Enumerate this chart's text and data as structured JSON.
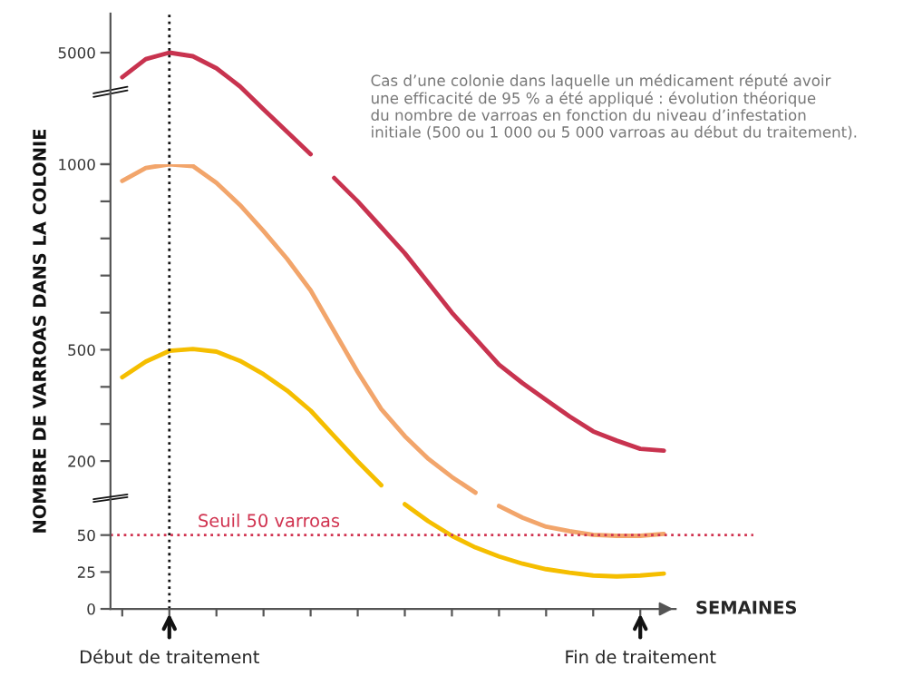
{
  "chart_data": [
    {
      "type": "line",
      "categories": [
        null,
        null,
        null,
        null,
        null,
        null,
        null,
        null,
        null
      ],
      "series": [
        {
          "color": "#c8334f",
          "values": [
            4120,
            4770,
            5000,
            4870,
            4440,
            3790,
            2970,
            2160,
            1360
          ]
        }
      ],
      "ylim": [
        1000,
        6400
      ],
      "yticks": [
        1000,
        5000
      ],
      "tick_labels": "y",
      "line_style": "solid",
      "annotations": [
        "Cas d’une colonie dans laquelle un médicament réputé avoir\nune efficacité de 95 % a été appliqué : évolution théorique\ndu nombre de varroas en fonction du niveau d’infestation\ninitiale (500 ou 1 000 ou 5 000 varroas au début du traitement)."
      ]
    },
    {
      "type": "line",
      "categories": [
        null,
        null,
        null,
        null,
        null,
        null,
        null,
        null,
        null,
        null,
        null,
        null,
        null,
        null,
        null,
        null,
        null,
        null,
        null,
        null,
        null,
        null,
        null,
        null
      ],
      "series": [
        {
          "color": "#c8334f",
          "values": [
            null,
            null,
            null,
            null,
            null,
            null,
            null,
            null,
            null,
            963,
            900,
            830,
            760,
            680,
            600,
            530,
            460,
            410,
            365,
            320,
            280,
            255,
            233,
            228
          ]
        },
        {
          "color": "#f2a56b",
          "values": [
            955,
            990,
            1000,
            995,
            950,
            890,
            820,
            745,
            660,
            550,
            440,
            340,
            267,
            206,
            157,
            115,
            null,
            null,
            null,
            null,
            null,
            null,
            null,
            null
          ]
        },
        {
          "color": "#f5be00",
          "values": [
            426,
            468,
            497,
            502,
            495,
            470,
            434,
            390,
            336,
            267,
            199,
            135,
            null,
            null,
            null,
            null,
            null,
            null,
            null,
            null,
            null,
            null,
            null,
            null
          ]
        }
      ],
      "ylim": [
        100,
        1000
      ],
      "yticks": [
        200,
        {
          "value": 300,
          "label": null
        },
        {
          "value": 400,
          "label": null
        },
        500,
        {
          "value": 600,
          "label": null
        },
        {
          "value": 700,
          "label": null
        },
        {
          "value": 800,
          "label": null
        },
        {
          "value": 900,
          "label": null
        },
        {
          "value": 1000,
          "label": null
        }
      ],
      "tick_labels": "y",
      "ylabel": "NOMBRE DE VARROAS DANS LA COLONIE",
      "line_style": "solid"
    },
    {
      "type": "line",
      "categories": [
        null,
        null,
        null,
        null,
        null,
        null,
        null,
        null,
        null,
        null,
        null,
        null,
        null,
        null,
        null,
        null,
        null,
        null,
        null,
        null,
        null,
        null,
        null,
        null
      ],
      "series": [
        {
          "color": "#f2a56b",
          "values": [
            null,
            null,
            null,
            null,
            null,
            null,
            null,
            null,
            null,
            null,
            null,
            null,
            null,
            null,
            null,
            null,
            69.7,
            61.8,
            55.7,
            52.6,
            50.2,
            49.5,
            49.5,
            50.8
          ]
        },
        {
          "color": "#f5be00",
          "values": [
            null,
            null,
            null,
            null,
            null,
            null,
            null,
            null,
            null,
            null,
            null,
            null,
            70.9,
            59.3,
            49.5,
            41.6,
            35.5,
            30.6,
            26.9,
            24.5,
            22.6,
            22,
            22.6,
            23.9
          ]
        }
      ],
      "ylim": [
        0,
        75
      ],
      "yticks": [
        0,
        25,
        50
      ],
      "xlabel": "SEMAINES",
      "line_style": "solid",
      "ref_lines": [
        {
          "axis": "y",
          "value": 50,
          "label": "Seuil 50 varroas",
          "color": "#d0324f",
          "line_style": "dotted"
        }
      ],
      "annotations": [
        "Début de traitement",
        "Fin de traitement"
      ]
    }
  ]
}
